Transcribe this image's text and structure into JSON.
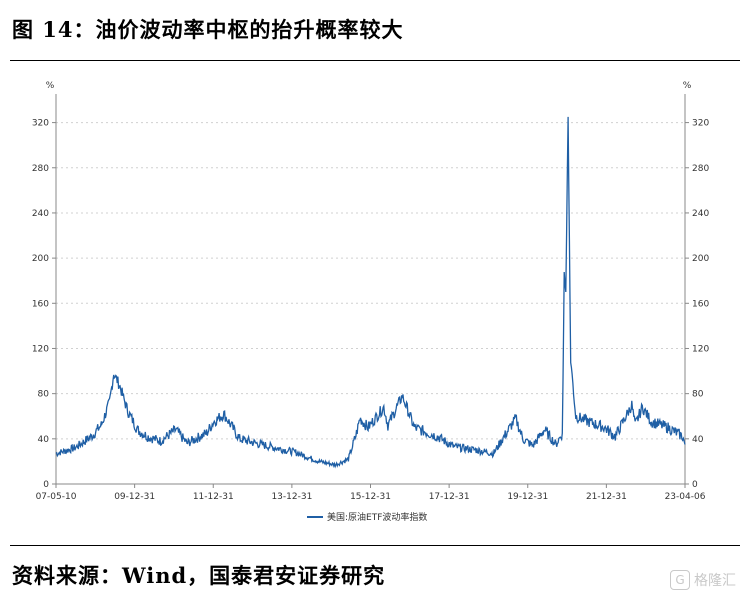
{
  "figure": {
    "title": "图 14：油价波动率中枢的抬升概率较大",
    "source": "资料来源：Wind，国泰君安证券研究",
    "watermark": "格隆汇"
  },
  "colors": {
    "line": "#1f5fa5",
    "axis": "#888888",
    "grid": "#d0d0d0"
  },
  "chart_data": {
    "type": "line",
    "title": "",
    "xlabel": "",
    "ylabel": "",
    "y_unit_left": "%",
    "y_unit_right": "%",
    "ylim": [
      0,
      340
    ],
    "y_ticks": [
      "0",
      "40",
      "80",
      "120",
      "160",
      "200",
      "240",
      "280",
      "320"
    ],
    "x_tick_labels": [
      "07-05-10",
      "09-12-31",
      "11-12-31",
      "13-12-31",
      "15-12-31",
      "17-12-31",
      "19-12-31",
      "21-12-31",
      "23-04-06"
    ],
    "grid": "horizontal dashed",
    "legend_position": "bottom-center",
    "series": [
      {
        "name": "美国:原油ETF波动率指数",
        "x": [
          "2007-05-10",
          "2007-11-01",
          "2008-04-01",
          "2008-07-01",
          "2008-09-15",
          "2008-10-24",
          "2008-12-15",
          "2009-03-01",
          "2009-06-01",
          "2009-09-01",
          "2009-12-31",
          "2010-05-20",
          "2010-09-01",
          "2011-03-01",
          "2011-05-05",
          "2011-08-08",
          "2011-12-31",
          "2012-06-01",
          "2012-12-01",
          "2013-06-01",
          "2013-12-31",
          "2014-06-01",
          "2014-10-01",
          "2014-12-15",
          "2015-01-15",
          "2015-04-01",
          "2015-08-24",
          "2015-10-01",
          "2016-02-11",
          "2016-06-01",
          "2016-12-31",
          "2017-06-01",
          "2017-12-31",
          "2018-06-01",
          "2018-12-24",
          "2019-03-01",
          "2019-06-01",
          "2019-09-16",
          "2019-12-31",
          "2020-02-28",
          "2020-03-16",
          "2020-03-31",
          "2020-04-21",
          "2020-05-15",
          "2020-07-01",
          "2020-11-01",
          "2021-03-23",
          "2021-07-01",
          "2021-12-01",
          "2021-12-31",
          "2022-03-08",
          "2022-06-01",
          "2022-11-01",
          "2023-03-15",
          "2023-04-06"
        ],
        "values": [
          27,
          32,
          42,
          52,
          72,
          98,
          88,
          65,
          48,
          42,
          38,
          48,
          36,
          45,
          55,
          62,
          40,
          36,
          32,
          28,
          20,
          17,
          22,
          45,
          58,
          50,
          68,
          52,
          78,
          50,
          42,
          33,
          30,
          27,
          58,
          40,
          34,
          48,
          35,
          45,
          185,
          170,
          325,
          110,
          60,
          55,
          50,
          42,
          70,
          52,
          68,
          55,
          50,
          42,
          35
        ]
      }
    ]
  }
}
